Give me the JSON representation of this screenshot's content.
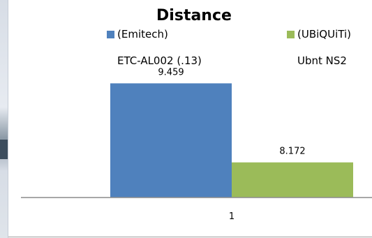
{
  "chart_data": {
    "type": "bar",
    "title": "Distance",
    "categories": [
      "1"
    ],
    "series": [
      {
        "name": "(Emitech) ETC-AL002 (.13)",
        "legend_lines": [
          "(Emitech)",
          "ETC-AL002 (.13)"
        ],
        "values": [
          9.459
        ],
        "value_labels": [
          "9.459"
        ],
        "color": "#4f81bd"
      },
      {
        "name": "(UBiQUiTi) Ubnt NS2",
        "legend_lines": [
          "(UBiQUiTi)",
          "Ubnt NS2"
        ],
        "values": [
          8.172
        ],
        "value_labels": [
          "8.172"
        ],
        "color": "#9bbb59"
      }
    ],
    "ylim": [
      7.6,
      9.6
    ],
    "grid": false,
    "legend": "top",
    "xlabel": "",
    "ylabel": ""
  }
}
